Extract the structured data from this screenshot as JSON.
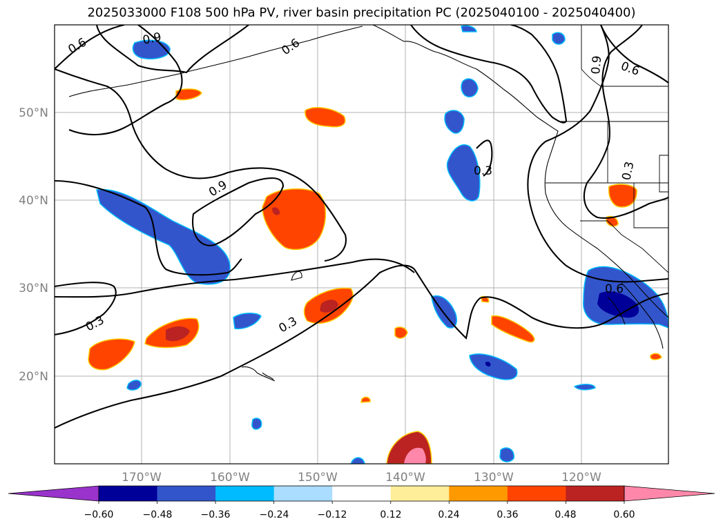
{
  "title": "2025033000 F108 500 hPa PV, river basin precipitation PC (2025040100 - 2025040400)",
  "map": {
    "lat_labels": [
      "50°N",
      "40°N",
      "30°N",
      "20°N"
    ],
    "lon_labels": [
      "170°W",
      "160°W",
      "150°W",
      "140°W",
      "130°W",
      "120°W"
    ],
    "contour_labels": [
      "0.6",
      "0.9",
      "0.6",
      "0.9",
      "0.6",
      "0.9",
      "0.3",
      "0.3",
      "0.3",
      "0.6",
      "0.3"
    ]
  },
  "colorbar": {
    "ticks": [
      "−0.60",
      "−0.48",
      "−0.36",
      "−0.24",
      "−0.12",
      "0.12",
      "0.24",
      "0.36",
      "0.48",
      "0.60"
    ],
    "colors": [
      "#9933cc",
      "#000099",
      "#3355cc",
      "#00bbff",
      "#aaddff",
      "#ffffff",
      "#ffee99",
      "#ff9900",
      "#ff4400",
      "#bb2222",
      "#ff88aa"
    ]
  }
}
